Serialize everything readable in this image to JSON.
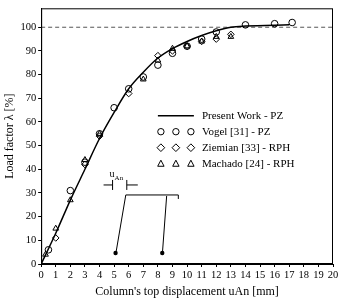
{
  "chart_data": {
    "type": "scatter",
    "x_label": "Column's top displacement uAn [mm]",
    "y_label": "Load factor λ [%]",
    "xlim": [
      0,
      20
    ],
    "xticks": [
      0,
      1,
      2,
      3,
      4,
      5,
      6,
      7,
      8,
      9,
      10,
      11,
      12,
      13,
      14,
      15,
      16,
      17,
      18,
      19,
      20
    ],
    "ylim": [
      0,
      108
    ],
    "yticks": [
      0,
      10,
      20,
      30,
      40,
      50,
      60,
      70,
      80,
      90,
      100
    ],
    "grid": false,
    "legend": "lower right",
    "reference_lines": [
      {
        "value": 100,
        "line_style": "dashed"
      }
    ],
    "annotations": [
      "uAn"
    ],
    "series": [
      {
        "name": "Present Work - PZ",
        "type": "line",
        "color": "#000000",
        "line_style": "solid",
        "x": [
          0,
          1,
          2,
          3,
          4,
          5,
          6,
          7,
          8,
          9,
          10,
          11,
          12,
          13,
          14,
          17
        ],
        "values": [
          0,
          13,
          27,
          40,
          53,
          64,
          74,
          81,
          87,
          91,
          94,
          96.5,
          98.5,
          100,
          100.5,
          101
        ]
      },
      {
        "name": "Vogel [31] - PZ",
        "type": "scatter",
        "color": "#000000",
        "marker": "circle",
        "x": [
          0.5,
          2,
          3,
          4,
          5,
          6,
          7,
          8,
          9,
          10,
          11,
          12,
          14,
          16,
          17.2
        ],
        "values": [
          6,
          31,
          43,
          55,
          66,
          74,
          79,
          84,
          89,
          92,
          95,
          98,
          101,
          101.5,
          102
        ]
      },
      {
        "name": "Ziemian [33] - RPH",
        "type": "scatter",
        "color": "#000000",
        "marker": "diamond",
        "x": [
          1,
          3,
          4,
          6,
          8,
          9,
          10,
          11,
          12,
          13
        ],
        "values": [
          11,
          42,
          54,
          72,
          88,
          90,
          92,
          94,
          95,
          97
        ]
      },
      {
        "name": "Machado [24] - RPH",
        "type": "scatter",
        "color": "#000000",
        "marker": "triangle",
        "x": [
          0.3,
          1,
          2,
          3,
          4,
          7,
          8,
          9,
          10,
          11,
          12,
          13
        ],
        "values": [
          4,
          15,
          27,
          44,
          55,
          78,
          86,
          91,
          92,
          94,
          96,
          96
        ]
      }
    ]
  }
}
